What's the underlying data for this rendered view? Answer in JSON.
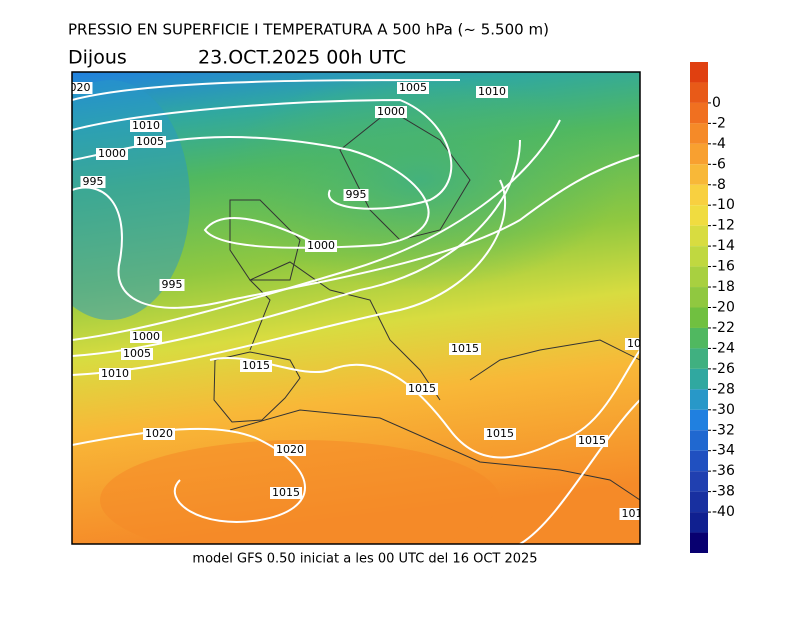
{
  "title": "PRESSIO EN SUPERFICIE I TEMPERATURA A 500 hPa (~ 5.500 m)",
  "day": "Dijous",
  "date": "23.OCT.2025 00h UTC",
  "footer": "model GFS 0.50 iniciat a les 00 UTC del 16 OCT 2025",
  "isobar_labels": [
    "020",
    "1005",
    "1010",
    "1000",
    "1010",
    "1005",
    "1000",
    "995",
    "995",
    "1000",
    "995",
    "1000",
    "1005",
    "1010",
    "1015",
    "1015",
    "1015",
    "1015",
    "1015",
    "1020",
    "1020",
    "1015",
    "10",
    "101"
  ],
  "colorbar": {
    "range": [
      -44,
      4
    ],
    "ticks": [
      0,
      -2,
      -4,
      -6,
      -8,
      -10,
      -12,
      -14,
      -16,
      -18,
      -20,
      -22,
      -24,
      -26,
      -28,
      -30,
      -32,
      -34,
      -36,
      -38,
      -40
    ],
    "colors": [
      "#e04010",
      "#e85a18",
      "#f07020",
      "#f58a28",
      "#f8a030",
      "#f8b838",
      "#f8d040",
      "#f0dc40",
      "#d8dc40",
      "#c0d840",
      "#a8d040",
      "#90c840",
      "#70c040",
      "#50b860",
      "#40b080",
      "#30a8a0",
      "#2898c8",
      "#2080e0",
      "#2068d0",
      "#2050c0",
      "#2040b0",
      "#1830a0",
      "#102090",
      "#080070"
    ]
  }
}
